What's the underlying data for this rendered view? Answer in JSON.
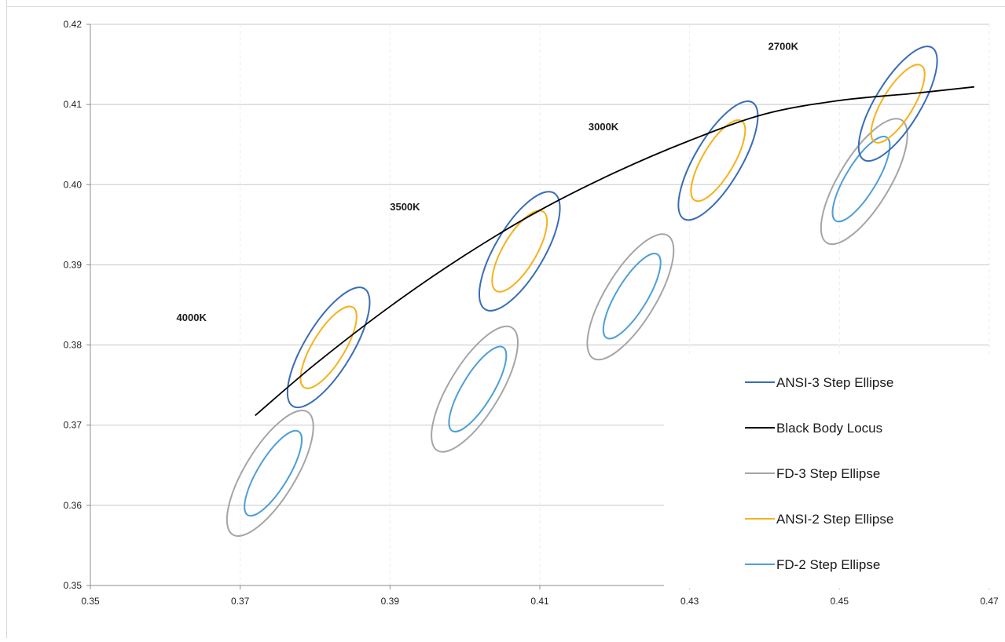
{
  "chart_data": {
    "type": "scatter",
    "title": "",
    "xlabel": "",
    "ylabel": "",
    "xlim": [
      0.35,
      0.47
    ],
    "ylim": [
      0.35,
      0.42
    ],
    "x_ticks": [
      "0.35",
      "0.37",
      "0.39",
      "0.41",
      "0.43",
      "0.45",
      "0.47"
    ],
    "y_ticks": [
      "0.35",
      "0.36",
      "0.37",
      "0.38",
      "0.39",
      "0.40",
      "0.41",
      "0.42"
    ],
    "grid": "horizontal",
    "legend_position": "right",
    "cct_labels": [
      {
        "text": "4000K",
        "x": 0.3635,
        "y": 0.383
      },
      {
        "text": "3500K",
        "x": 0.392,
        "y": 0.3968
      },
      {
        "text": "3000K",
        "x": 0.4185,
        "y": 0.4068
      },
      {
        "text": "2700K",
        "x": 0.4425,
        "y": 0.4168
      }
    ],
    "series": [
      {
        "name": "ANSI-3 Step Ellipse",
        "color": "#3a6db5",
        "ellipses": [
          {
            "cx": 0.3818,
            "cy": 0.3797,
            "rx": 0.00316,
            "ry": 0.00858,
            "rot": 31.3
          },
          {
            "cx": 0.4073,
            "cy": 0.3917,
            "rx": 0.00327,
            "ry": 0.00843,
            "rot": 30.5
          },
          {
            "cx": 0.4338,
            "cy": 0.403,
            "rx": 0.00309,
            "ry": 0.00843,
            "rot": 30.5
          },
          {
            "cx": 0.4578,
            "cy": 0.4101,
            "rx": 0.00302,
            "ry": 0.00819,
            "rot": 31.3
          }
        ]
      },
      {
        "name": "Black Body Locus",
        "color": "#000000",
        "points": [
          [
            0.372,
            0.3712
          ],
          [
            0.38,
            0.3776
          ],
          [
            0.39,
            0.3848
          ],
          [
            0.4,
            0.3912
          ],
          [
            0.41,
            0.3968
          ],
          [
            0.42,
            0.4015
          ],
          [
            0.43,
            0.4055
          ],
          [
            0.44,
            0.4088
          ],
          [
            0.45,
            0.4105
          ],
          [
            0.46,
            0.4114
          ],
          [
            0.468,
            0.4122
          ]
        ]
      },
      {
        "name": "FD-3 Step Ellipse",
        "color": "#a5a5a5",
        "ellipses": [
          {
            "cx": 0.374,
            "cy": 0.364,
            "rx": 0.00338,
            "ry": 0.00896,
            "rot": 31.3
          },
          {
            "cx": 0.4013,
            "cy": 0.3745,
            "rx": 0.00338,
            "ry": 0.00896,
            "rot": 31.3
          },
          {
            "cx": 0.4221,
            "cy": 0.386,
            "rx": 0.00338,
            "ry": 0.00896,
            "rot": 31.3
          },
          {
            "cx": 0.4533,
            "cy": 0.4004,
            "rx": 0.00338,
            "ry": 0.00896,
            "rot": 31.3
          }
        ]
      },
      {
        "name": "ANSI-2 Step Ellipse",
        "color": "#f5b21c",
        "ellipses": [
          {
            "cx": 0.3818,
            "cy": 0.3797,
            "rx": 0.00215,
            "ry": 0.00585,
            "rot": 31.3
          },
          {
            "cx": 0.4073,
            "cy": 0.3917,
            "rx": 0.00222,
            "ry": 0.00575,
            "rot": 30.5
          },
          {
            "cx": 0.4338,
            "cy": 0.403,
            "rx": 0.0021,
            "ry": 0.00575,
            "rot": 30.5
          },
          {
            "cx": 0.4578,
            "cy": 0.4101,
            "rx": 0.00206,
            "ry": 0.00558,
            "rot": 31.3
          }
        ]
      },
      {
        "name": "FD-2 Step Ellipse",
        "color": "#4e9fd6",
        "ellipses": [
          {
            "cx": 0.3744,
            "cy": 0.364,
            "rx": 0.00205,
            "ry": 0.0061,
            "rot": 31.3
          },
          {
            "cx": 0.4017,
            "cy": 0.3745,
            "rx": 0.00205,
            "ry": 0.0061,
            "rot": 31.3
          },
          {
            "cx": 0.4223,
            "cy": 0.3861,
            "rx": 0.00205,
            "ry": 0.0061,
            "rot": 31.3
          },
          {
            "cx": 0.4529,
            "cy": 0.4007,
            "rx": 0.00205,
            "ry": 0.0061,
            "rot": 31.3
          }
        ]
      }
    ]
  }
}
